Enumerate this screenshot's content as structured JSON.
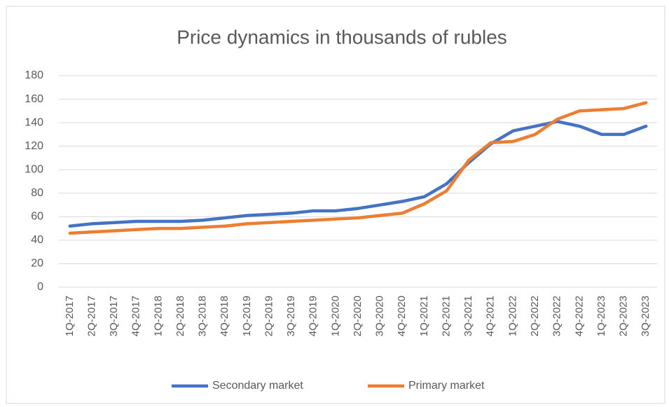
{
  "chart_data": {
    "type": "line",
    "title": "Price dynamics in thousands of rubles",
    "categories": [
      "1Q-2017",
      "2Q-2017",
      "3Q-2017",
      "4Q-2017",
      "1Q-2018",
      "2Q-2018",
      "3Q-2018",
      "4Q-2018",
      "1Q-2019",
      "2Q-2019",
      "3Q-2019",
      "4Q-2019",
      "1Q-2020",
      "2Q-2020",
      "3Q-2020",
      "4Q-2020",
      "1Q-2021",
      "2Q-2021",
      "3Q-2021",
      "4Q-2021",
      "1Q-2022",
      "2Q-2022",
      "3Q-2022",
      "4Q-2022",
      "1Q-2023",
      "2Q-2023",
      "3Q-2023"
    ],
    "series": [
      {
        "name": "Secondary market",
        "color": "#4472c4",
        "values": [
          52,
          54,
          55,
          56,
          56,
          56,
          57,
          59,
          61,
          62,
          63,
          65,
          65,
          67,
          70,
          73,
          77,
          88,
          106,
          122,
          133,
          137,
          141,
          137,
          130,
          130,
          137
        ]
      },
      {
        "name": "Primary market",
        "color": "#ed7d31",
        "values": [
          46,
          47,
          48,
          49,
          50,
          50,
          51,
          52,
          54,
          55,
          56,
          57,
          58,
          59,
          61,
          63,
          71,
          82,
          108,
          123,
          124,
          130,
          143,
          150,
          151,
          152,
          157
        ]
      }
    ],
    "ylim": [
      0,
      180
    ],
    "yticks": [
      0,
      20,
      40,
      60,
      80,
      100,
      120,
      140,
      160,
      180
    ],
    "grid": true,
    "legend": "bottom"
  }
}
